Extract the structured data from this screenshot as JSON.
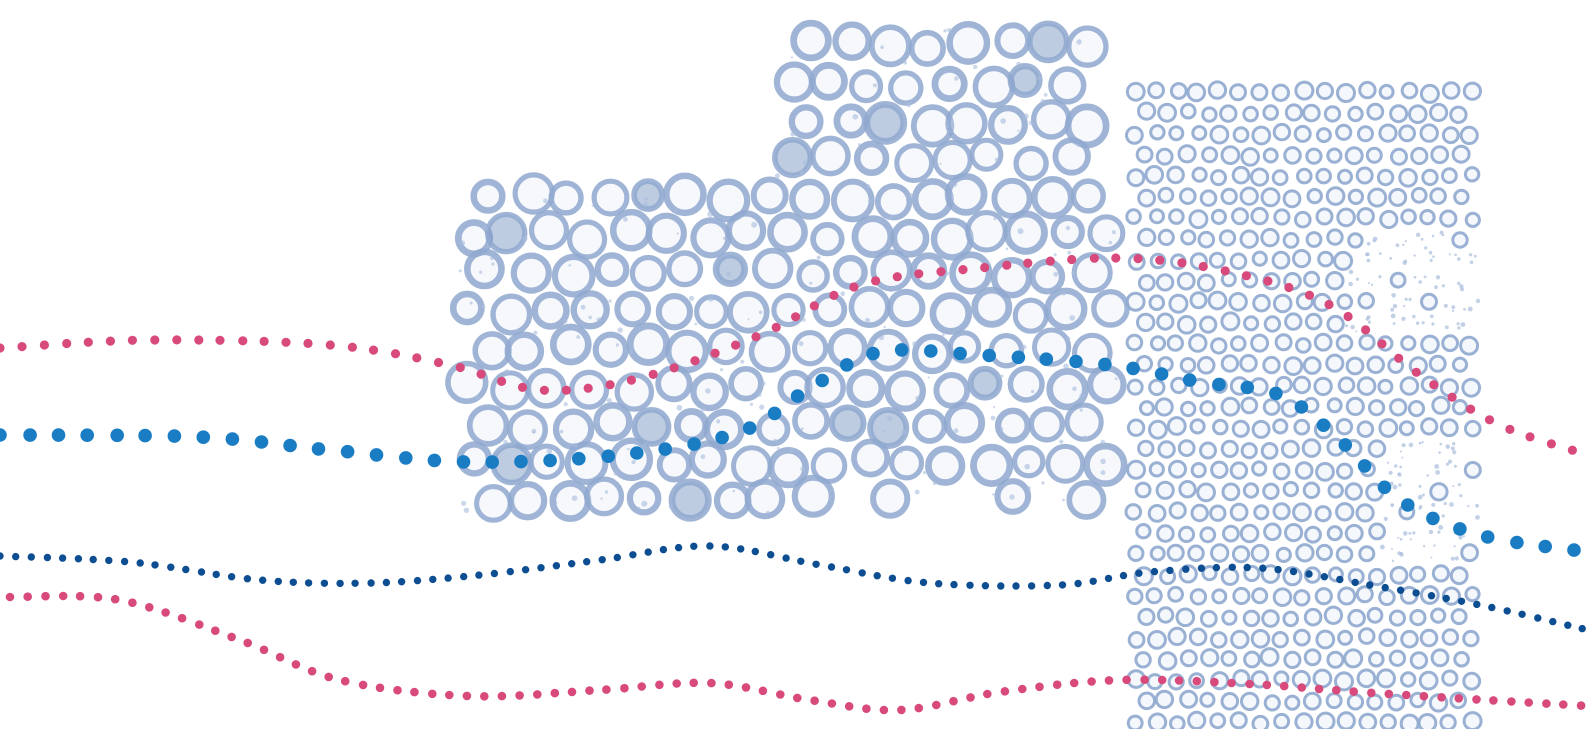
{
  "illustration": {
    "subject": "",
    "palette": {
      "background": "#ffffff",
      "cell_stroke": "#8fa8cf",
      "cell_fill": "#dbe5f3",
      "cell_dark": "#6f8fbf",
      "speckle": "#a9bddc",
      "pink_dots": "#d94a7c",
      "blue_dots": "#1a7dc4",
      "navy_dots": "#0d4e92"
    }
  }
}
